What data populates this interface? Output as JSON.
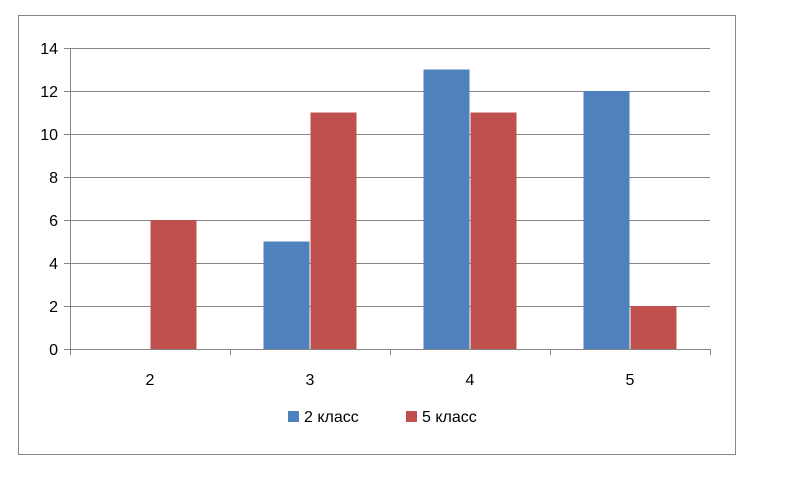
{
  "chart_data": {
    "type": "bar",
    "title": "",
    "xlabel": "",
    "ylabel": "",
    "categories": [
      "2",
      "3",
      "4",
      "5"
    ],
    "series": [
      {
        "name": "2 класс",
        "values": [
          0,
          5,
          13,
          12
        ],
        "color": "#4F81BD"
      },
      {
        "name": "5 класс",
        "values": [
          6,
          11,
          11,
          2
        ],
        "color": "#C0504D"
      }
    ],
    "ylim": [
      0,
      14
    ],
    "yticks": [
      0,
      2,
      4,
      6,
      8,
      10,
      12,
      14
    ],
    "grid": true,
    "legend": "bottom"
  }
}
